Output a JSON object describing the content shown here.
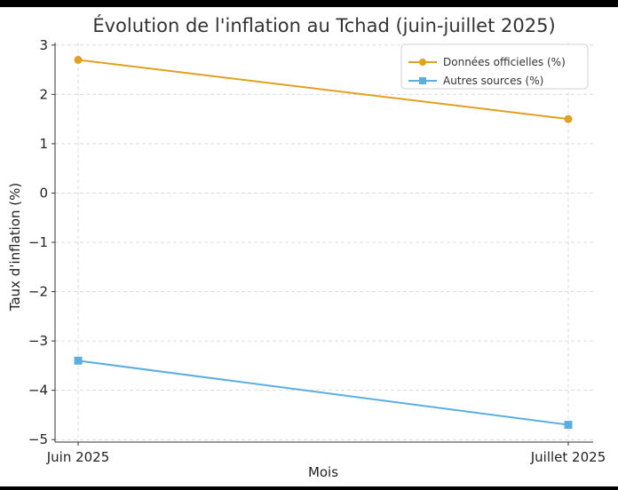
{
  "chart_data": {
    "type": "line",
    "title": "Évolution de l'inflation au Tchad (juin-juillet 2025)",
    "xlabel": "Mois",
    "ylabel": "Taux d'inflation (%)",
    "categories": [
      "Juin 2025",
      "Juillet 2025"
    ],
    "ylim": [
      -5.05,
      3.05
    ],
    "yticks": [
      3,
      2,
      1,
      0,
      -1,
      -2,
      -3,
      -4,
      -5
    ],
    "ytick_labels": [
      "3",
      "2",
      "1",
      "0",
      "−1",
      "−2",
      "−3",
      "−4",
      "−5"
    ],
    "grid": true,
    "legend_position": "top-right",
    "series": [
      {
        "name": "Données officielles (%)",
        "values": [
          2.7,
          1.5
        ],
        "color": "#e0a020",
        "marker": "circle"
      },
      {
        "name": "Autres sources (%)",
        "values": [
          -3.4,
          -4.7
        ],
        "color": "#5aaee0",
        "marker": "square"
      }
    ]
  }
}
